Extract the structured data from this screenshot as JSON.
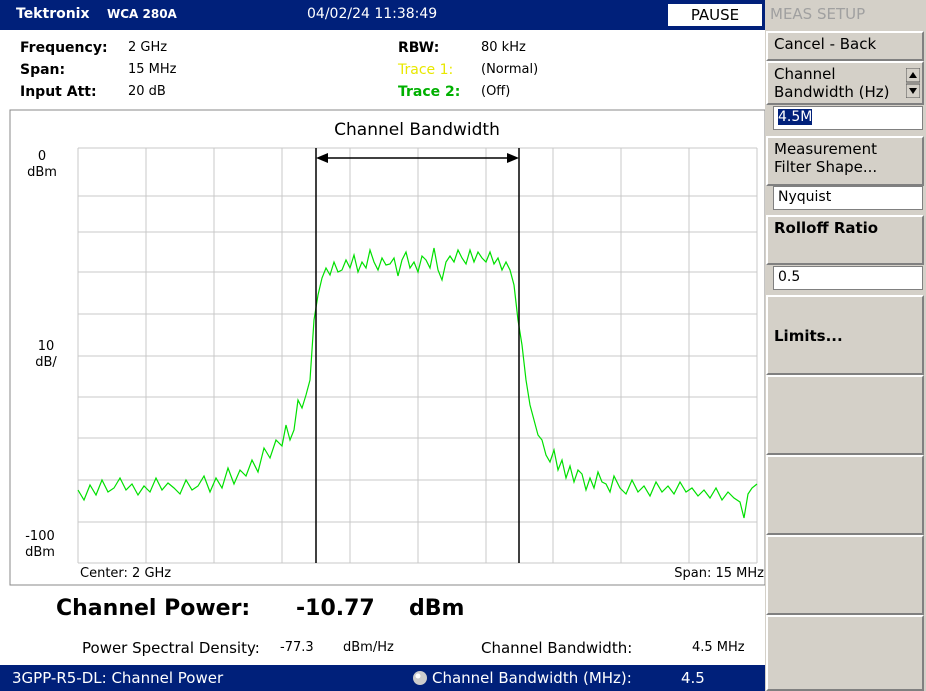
{
  "header": {
    "brand": "Tektronix",
    "model": "WCA 280A",
    "datetime": "04/02/24 11:38:49",
    "status": "PAUSE"
  },
  "settings": {
    "frequency": {
      "label": "Frequency:",
      "value": "2 GHz"
    },
    "span": {
      "label": "Span:",
      "value": "15 MHz"
    },
    "input_att": {
      "label": "Input Att:",
      "value": "20 dB"
    },
    "rbw": {
      "label": "RBW:",
      "value": "80 kHz"
    },
    "trace1": {
      "label": "Trace 1:",
      "value": "(Normal)"
    },
    "trace2": {
      "label": "Trace 2:",
      "value": "(Off)"
    }
  },
  "plot": {
    "title": "Channel Bandwidth",
    "y_top": [
      "0",
      "dBm"
    ],
    "y_mid": [
      "10",
      "dB/"
    ],
    "y_bottom": [
      "-100",
      "dBm"
    ],
    "center": "Center: 2 GHz",
    "span": "Span: 15 MHz"
  },
  "results": {
    "channel_power_label": "Channel Power:",
    "channel_power_value": "-10.77",
    "channel_power_unit": "dBm",
    "psd_label": "Power Spectral Density:",
    "psd_value": "-77.3",
    "psd_unit": "dBm/Hz",
    "cbw_label": "Channel Bandwidth:",
    "cbw_value": "4.5 MHz"
  },
  "status_bar": {
    "mode": "3GPP-R5-DL: Channel Power",
    "knob_label": "Channel Bandwidth (MHz):",
    "knob_value": "4.5"
  },
  "side_menu": {
    "title": "MEAS SETUP",
    "cancel": "Cancel - Back",
    "channel_bandwidth": "Channel Bandwidth (Hz)",
    "channel_bandwidth_value": "4.5M",
    "filter_shape": "Measurement Filter Shape...",
    "filter_shape_value": "Nyquist",
    "rolloff": "Rolloff Ratio",
    "rolloff_value": "0.5",
    "limits": "Limits..."
  }
}
